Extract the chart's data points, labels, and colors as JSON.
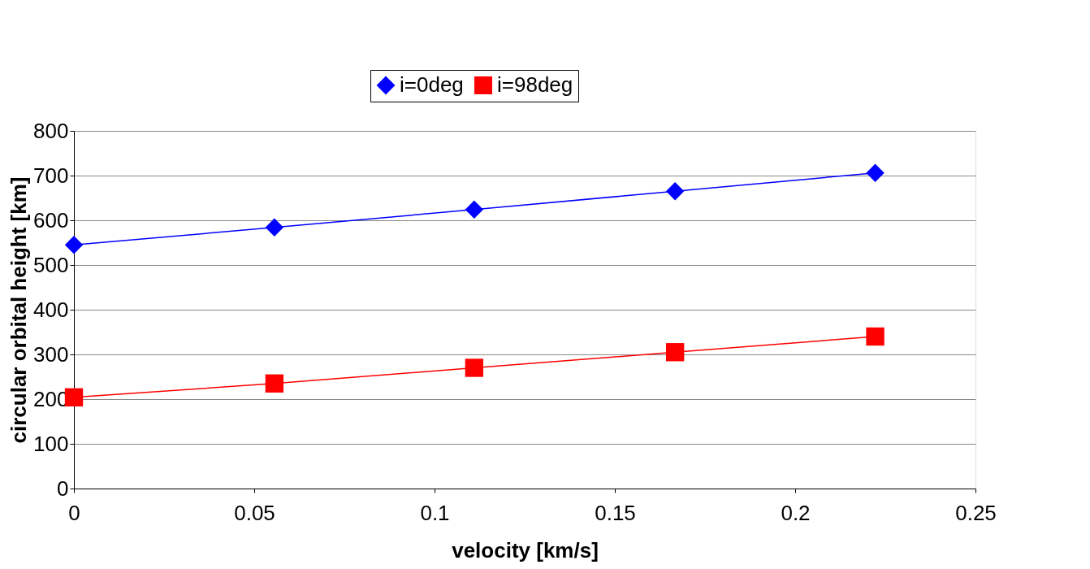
{
  "chart_data": {
    "type": "line",
    "xlabel": "velocity [km/s]",
    "ylabel": "circular orbital height [km]",
    "x": [
      0,
      0.0556,
      0.111,
      0.1667,
      0.2222
    ],
    "series": [
      {
        "name": "i=0deg",
        "color": "#0000ff",
        "marker": "diamond",
        "values": [
          545,
          584,
          624,
          665,
          706
        ]
      },
      {
        "name": "i=98deg",
        "color": "#ff0000",
        "marker": "square",
        "values": [
          204,
          235,
          270,
          305,
          340
        ]
      }
    ],
    "xlim": [
      0,
      0.25
    ],
    "xticks": [
      0,
      0.05,
      0.1,
      0.15,
      0.2,
      0.25
    ],
    "ylim": [
      0,
      800
    ],
    "yticks": [
      0,
      100,
      200,
      300,
      400,
      500,
      600,
      700,
      800
    ],
    "grid": "y",
    "legend": "top",
    "line_style": "solid"
  }
}
